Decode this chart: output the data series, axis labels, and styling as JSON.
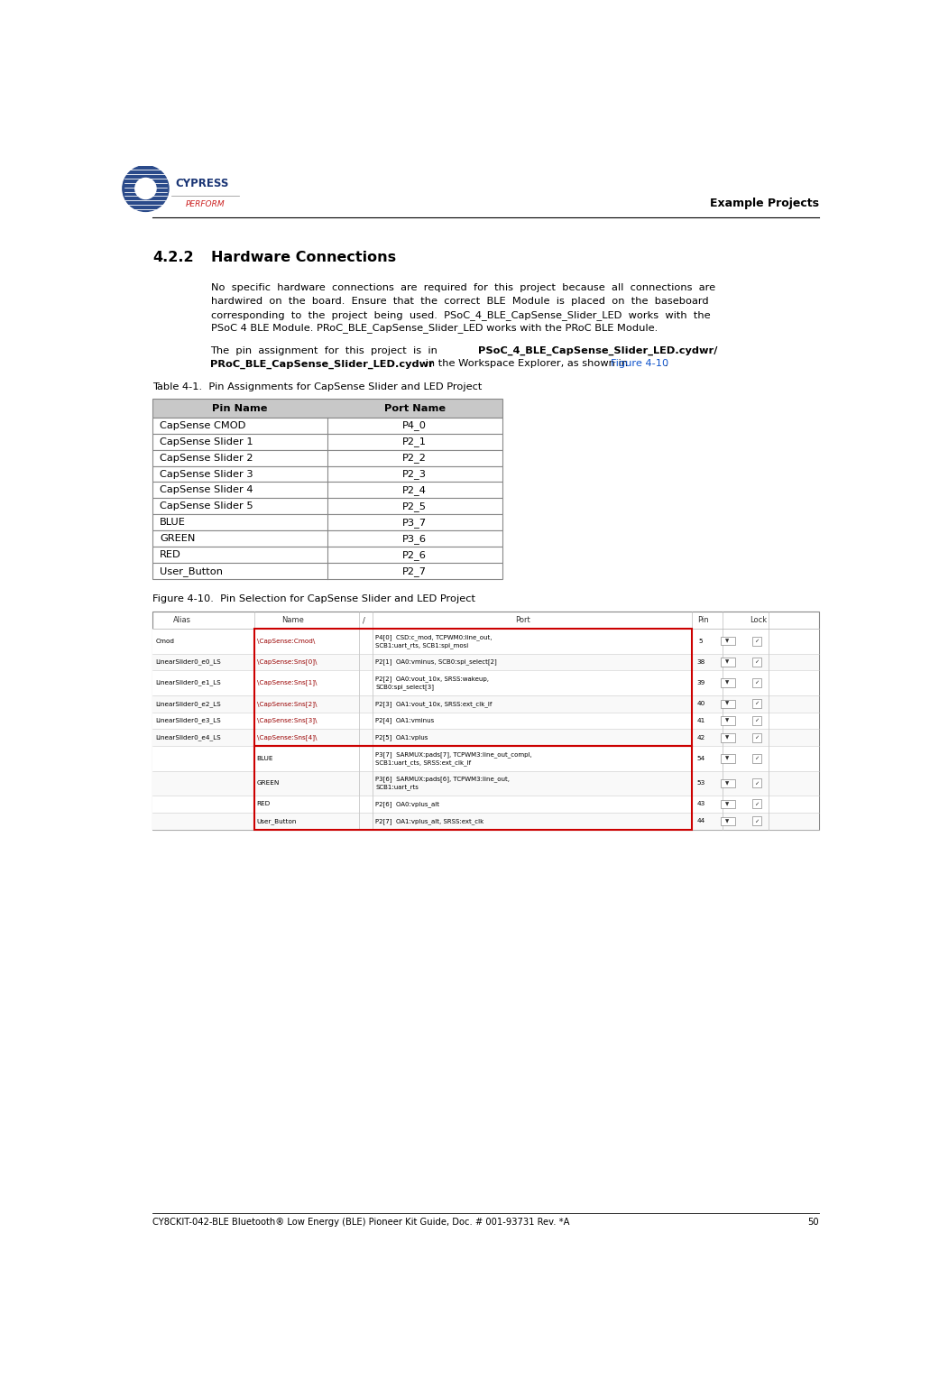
{
  "page_width": 10.31,
  "page_height": 15.3,
  "bg_color": "#ffffff",
  "header_text": "Example Projects",
  "footer_text": "CY8CKIT-042-BLE Bluetooth® Low Energy (BLE) Pioneer Kit Guide, Doc. # 001-93731 Rev. *A",
  "footer_page": "50",
  "section_num": "4.2.2",
  "section_title": "Hardware Connections",
  "para1_lines": [
    "No  specific  hardware  connections  are  required  for  this  project  because  all  connections  are",
    "hardwired  on  the  board.  Ensure  that  the  correct  BLE  Module  is  placed  on  the  baseboard",
    "corresponding  to  the  project  being  used.  PSoC_4_BLE_CapSense_Slider_LED  works  with  the",
    "PSoC 4 BLE Module. PRoC_BLE_CapSense_Slider_LED works with the PRoC BLE Module."
  ],
  "para2_plain": "The  pin  assignment  for  this  project  is  in  ",
  "para2_bold1": "PSoC_4_BLE_CapSense_Slider_LED.cydwr/",
  "para2_bold2": "PRoC_BLE_CapSense_Slider_LED.cydwr",
  "para2_after_bold": " in the Workspace Explorer, as shown in ",
  "para2_link": "Figure 4-10",
  "para2_dot": ".",
  "table_title": "Table 4-1.  Pin Assignments for CapSense Slider and LED Project",
  "table_headers": [
    "Pin Name",
    "Port Name"
  ],
  "table_rows": [
    [
      "CapSense CMOD",
      "P4_0"
    ],
    [
      "CapSense Slider 1",
      "P2_1"
    ],
    [
      "CapSense Slider 2",
      "P2_2"
    ],
    [
      "CapSense Slider 3",
      "P2_3"
    ],
    [
      "CapSense Slider 4",
      "P2_4"
    ],
    [
      "CapSense Slider 5",
      "P2_5"
    ],
    [
      "BLUE",
      "P3_7"
    ],
    [
      "GREEN",
      "P3_6"
    ],
    [
      "RED",
      "P2_6"
    ],
    [
      "User_Button",
      "P2_7"
    ]
  ],
  "figure_caption": "Figure 4-10.  Pin Selection for CapSense Slider and LED Project",
  "fig_col_headers": [
    "Alias",
    "Name",
    "/",
    "Port",
    "Pin",
    "Lock"
  ],
  "fig_rows": [
    [
      "Cmod",
      "\\CapSense:Cmod\\",
      "P4[0]  CSD:c_mod, TCPWM0:line_out,\nSCB1:uart_rts, SCB1:spi_mosi",
      "5",
      true
    ],
    [
      "LinearSlider0_e0_LS",
      "\\CapSense:Sns[0]\\",
      "P2[1]  OA0:vminus, SCB0:spi_select[2]",
      "38",
      true
    ],
    [
      "LinearSlider0_e1_LS",
      "\\CapSense:Sns[1]\\",
      "P2[2]  OA0:vout_10x, SRSS:wakeup,\nSCB0:spi_select[3]",
      "39",
      true
    ],
    [
      "LinearSlider0_e2_LS",
      "\\CapSense:Sns[2]\\",
      "P2[3]  OA1:vout_10x, SRSS:ext_clk_lf",
      "40",
      true
    ],
    [
      "LinearSlider0_e3_LS",
      "\\CapSense:Sns[3]\\",
      "P2[4]  OA1:vminus",
      "41",
      true
    ],
    [
      "LinearSlider0_e4_LS",
      "\\CapSense:Sns[4]\\",
      "P2[5]  OA1:vplus",
      "42",
      true
    ],
    [
      "",
      "BLUE",
      "P3[7]  SARMUX:pads[7], TCPWM3:line_out_compl,\nSCB1:uart_cts, SRSS:ext_clk_lf",
      "54",
      false
    ],
    [
      "",
      "GREEN",
      "P3[6]  SARMUX:pads[6], TCPWM3:line_out,\nSCB1:uart_rts",
      "53",
      false
    ],
    [
      "",
      "RED",
      "P2[6]  OA0:vplus_alt",
      "43",
      false
    ],
    [
      "",
      "User_Button",
      "P2[7]  OA1:vplus_alt, SRSS:ext_clk",
      "44",
      false
    ]
  ],
  "table_header_bg": "#c8c8c8",
  "table_border_color": "#888888",
  "link_color": "#1155cc",
  "text_color": "#000000",
  "fig_name_color": "#990000",
  "red_box_color": "#cc0000"
}
